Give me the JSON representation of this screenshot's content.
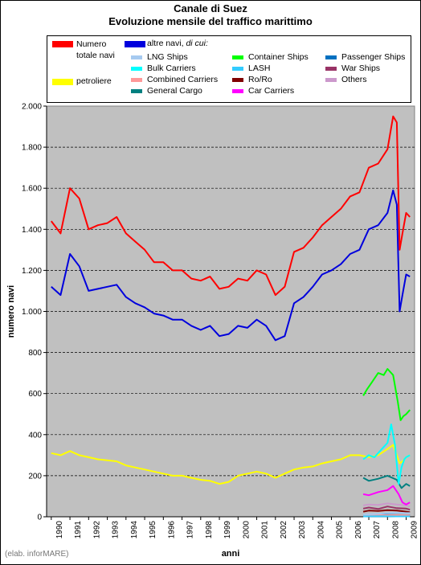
{
  "chart_data": {
    "type": "line",
    "title": "Canale di Suez",
    "subtitle": "Evoluzione mensile del traffico marittimo",
    "xlabel": "anni",
    "ylabel": "numero navi",
    "ylim": [
      0,
      2000
    ],
    "xlim": [
      1989.75,
      2009.45
    ],
    "yticks": [
      0,
      200,
      400,
      600,
      800,
      1000,
      1200,
      1400,
      1600,
      1800,
      2000
    ],
    "ytick_labels": [
      "0",
      "200",
      "400",
      "600",
      "800",
      "1.000",
      "1.200",
      "1.400",
      "1.600",
      "1.800",
      "2.000"
    ],
    "xtick_labels": [
      "1990",
      "1991",
      "1992",
      "1993",
      "1994",
      "1995",
      "1996",
      "1997",
      "1998",
      "1999",
      "2000",
      "2001",
      "2002",
      "2003",
      "2004",
      "2005",
      "2006",
      "2007",
      "2008",
      "2009"
    ],
    "grid": "horizontal dashed",
    "background": "#c0c0c0",
    "legend_placement": "top",
    "legend_subheader_prefix": "altre navi,",
    "legend_subheader_italic": "di cui:",
    "series": [
      {
        "name": "Numero totale navi",
        "color": "#ff0000",
        "x": [
          1990.0,
          1990.5,
          1991.0,
          1991.5,
          1992.0,
          1992.5,
          1993.0,
          1993.5,
          1994.0,
          1994.5,
          1995.0,
          1995.5,
          1996.0,
          1996.5,
          1997.0,
          1997.5,
          1998.0,
          1998.5,
          1999.0,
          1999.5,
          2000.0,
          2000.5,
          2001.0,
          2001.5,
          2002.0,
          2002.5,
          2003.0,
          2003.5,
          2004.0,
          2004.5,
          2005.0,
          2005.5,
          2006.0,
          2006.5,
          2007.0,
          2007.5,
          2008.0,
          2008.3,
          2008.5,
          2008.65,
          2008.8,
          2009.0,
          2009.2
        ],
        "y": [
          1440,
          1380,
          1600,
          1550,
          1400,
          1420,
          1430,
          1460,
          1380,
          1340,
          1300,
          1240,
          1240,
          1200,
          1200,
          1160,
          1150,
          1170,
          1110,
          1120,
          1160,
          1150,
          1200,
          1180,
          1080,
          1120,
          1290,
          1310,
          1360,
          1420,
          1460,
          1500,
          1560,
          1580,
          1700,
          1720,
          1790,
          1950,
          1920,
          1300,
          1380,
          1480,
          1460
        ]
      },
      {
        "name": "altre navi, di cui:",
        "color": "#0000dd",
        "x": [
          1990.0,
          1990.5,
          1991.0,
          1991.5,
          1992.0,
          1992.5,
          1993.0,
          1993.5,
          1994.0,
          1994.5,
          1995.0,
          1995.5,
          1996.0,
          1996.5,
          1997.0,
          1997.5,
          1998.0,
          1998.5,
          1999.0,
          1999.5,
          2000.0,
          2000.5,
          2001.0,
          2001.5,
          2002.0,
          2002.5,
          2003.0,
          2003.5,
          2004.0,
          2004.5,
          2005.0,
          2005.5,
          2006.0,
          2006.5,
          2007.0,
          2007.5,
          2008.0,
          2008.3,
          2008.5,
          2008.65,
          2008.8,
          2009.0,
          2009.2
        ],
        "y": [
          1120,
          1080,
          1280,
          1220,
          1100,
          1110,
          1120,
          1130,
          1070,
          1040,
          1020,
          990,
          980,
          960,
          960,
          930,
          910,
          930,
          880,
          890,
          930,
          920,
          960,
          930,
          860,
          880,
          1040,
          1070,
          1120,
          1180,
          1200,
          1230,
          1280,
          1300,
          1400,
          1420,
          1480,
          1590,
          1520,
          1000,
          1080,
          1180,
          1170
        ]
      },
      {
        "name": "petroliere",
        "color": "#ffff00",
        "x": [
          1990.0,
          1990.5,
          1991.0,
          1991.5,
          1992.0,
          1992.5,
          1993.0,
          1993.5,
          1994.0,
          1994.5,
          1995.0,
          1995.5,
          1996.0,
          1996.5,
          1997.0,
          1997.5,
          1998.0,
          1998.5,
          1999.0,
          1999.5,
          2000.0,
          2000.5,
          2001.0,
          2001.5,
          2002.0,
          2002.5,
          2003.0,
          2003.5,
          2004.0,
          2004.5,
          2005.0,
          2005.5,
          2006.0,
          2006.5,
          2007.0,
          2007.5,
          2008.0,
          2008.3,
          2008.5,
          2008.65,
          2008.8,
          2009.0,
          2009.2
        ],
        "y": [
          310,
          300,
          320,
          300,
          290,
          280,
          275,
          270,
          250,
          240,
          230,
          220,
          210,
          200,
          200,
          190,
          180,
          175,
          160,
          170,
          200,
          210,
          220,
          210,
          190,
          210,
          230,
          240,
          245,
          260,
          270,
          280,
          300,
          300,
          290,
          300,
          330,
          350,
          300,
          260,
          270,
          290,
          300
        ]
      },
      {
        "name": "LNG Ships",
        "color": "#a6caf0",
        "x": [
          2006.7,
          2007.0,
          2007.5,
          2008.0,
          2008.5,
          2009.0,
          2009.2
        ],
        "y": [
          10,
          12,
          15,
          18,
          20,
          18,
          18
        ]
      },
      {
        "name": "Bulk Carriers",
        "color": "#00ffff",
        "x": [
          2006.7,
          2007.0,
          2007.3,
          2007.6,
          2008.0,
          2008.2,
          2008.4,
          2008.6,
          2008.75,
          2008.9,
          2009.0,
          2009.2
        ],
        "y": [
          280,
          300,
          290,
          320,
          360,
          450,
          350,
          160,
          240,
          280,
          290,
          300
        ]
      },
      {
        "name": "Combined Carriers",
        "color": "#ff9999",
        "x": [
          2006.7,
          2007.5,
          2008.5,
          2009.2
        ],
        "y": [
          6,
          8,
          8,
          7
        ]
      },
      {
        "name": "General Cargo",
        "color": "#008080",
        "x": [
          2006.7,
          2007.0,
          2007.5,
          2008.0,
          2008.5,
          2008.75,
          2009.0,
          2009.2
        ],
        "y": [
          190,
          175,
          185,
          200,
          180,
          140,
          160,
          150
        ]
      },
      {
        "name": "Container Ships",
        "color": "#00ff00",
        "x": [
          2006.7,
          2006.9,
          2007.2,
          2007.5,
          2007.8,
          2008.0,
          2008.3,
          2008.55,
          2008.7,
          2008.85,
          2009.0,
          2009.2
        ],
        "y": [
          590,
          620,
          660,
          700,
          690,
          720,
          690,
          560,
          470,
          490,
          500,
          520
        ]
      },
      {
        "name": "LASH",
        "color": "#33ccff",
        "x": [
          2006.7,
          2007.5,
          2008.5,
          2009.2
        ],
        "y": [
          2,
          3,
          2,
          2
        ]
      },
      {
        "name": "Ro/Ro",
        "color": "#800000",
        "x": [
          2006.7,
          2007.0,
          2007.5,
          2008.0,
          2008.5,
          2009.0,
          2009.2
        ],
        "y": [
          25,
          30,
          28,
          32,
          30,
          25,
          22
        ]
      },
      {
        "name": "Car Carriers",
        "color": "#ff00ff",
        "x": [
          2006.7,
          2007.0,
          2007.5,
          2008.0,
          2008.3,
          2008.6,
          2008.8,
          2009.0,
          2009.2
        ],
        "y": [
          110,
          105,
          120,
          130,
          150,
          110,
          70,
          60,
          70
        ]
      },
      {
        "name": "Passenger Ships",
        "color": "#0070c0",
        "x": [
          2006.7,
          2007.5,
          2008.5,
          2009.2
        ],
        "y": [
          8,
          10,
          9,
          8
        ]
      },
      {
        "name": "War Ships",
        "color": "#993366",
        "x": [
          2006.7,
          2007.0,
          2007.5,
          2008.0,
          2008.5,
          2009.0,
          2009.2
        ],
        "y": [
          40,
          45,
          38,
          50,
          42,
          40,
          35
        ]
      },
      {
        "name": "Others",
        "color": "#cc99cc",
        "x": [
          2006.7,
          2007.0,
          2007.5,
          2008.0,
          2008.5,
          2009.0,
          2009.2
        ],
        "y": [
          55,
          60,
          58,
          65,
          60,
          55,
          50
        ]
      }
    ]
  },
  "credit": "(elab. inforMARE)"
}
